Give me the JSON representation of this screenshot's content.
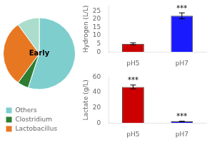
{
  "chart_data": [
    {
      "type": "pie",
      "categories": [
        "Others",
        "Clostridium",
        "Lactobacillus",
        null
      ],
      "values": [
        55,
        5,
        30,
        10
      ],
      "colors": [
        "#7ecece",
        "#2e7d32",
        "#e87722",
        "#aaddcc"
      ],
      "annotations": [
        "Early"
      ],
      "legend": "lower left"
    },
    {
      "type": "bar",
      "categories": [
        "pH5",
        "pH7"
      ],
      "values": [
        5,
        22
      ],
      "colors": [
        "#cc0000",
        "#1a1aff"
      ],
      "yerr": [
        0.6,
        1.8
      ],
      "ylabel": "Hydrogen (L/L)",
      "ylim": [
        0,
        28
      ],
      "yticks": [
        0,
        5,
        10,
        15,
        20,
        25
      ],
      "grid": false,
      "annotations": [
        {
          "text": "***",
          "category": "pH7"
        }
      ]
    },
    {
      "type": "bar",
      "categories": [
        "pH5",
        "pH7"
      ],
      "values": [
        47,
        2
      ],
      "colors": [
        "#cc0000",
        "#1a1aff"
      ],
      "yerr": [
        2.5,
        0.2
      ],
      "ylabel": "Lactate (g/L)",
      "ylim": [
        0,
        60
      ],
      "yticks": [
        0,
        20,
        40,
        60
      ],
      "grid": false,
      "annotations": [
        {
          "text": "***",
          "category": "pH5"
        },
        {
          "text": "***",
          "category": "pH7"
        }
      ]
    }
  ]
}
